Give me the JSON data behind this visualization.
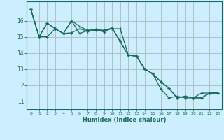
{
  "title": "",
  "xlabel": "Humidex (Indice chaleur)",
  "background_color": "#cceeff",
  "grid_color": "#aabbbb",
  "line_color": "#1a6b5a",
  "xlim": [
    -0.5,
    23.5
  ],
  "ylim": [
    10.5,
    17.2
  ],
  "yticks": [
    11,
    12,
    13,
    14,
    15,
    16
  ],
  "xticks": [
    0,
    1,
    2,
    3,
    4,
    5,
    6,
    7,
    8,
    9,
    10,
    11,
    12,
    13,
    14,
    15,
    16,
    17,
    18,
    19,
    20,
    21,
    22,
    23
  ],
  "series": [
    [
      16.7,
      15.0,
      15.0,
      15.5,
      15.2,
      15.25,
      15.5,
      15.35,
      15.4,
      15.4,
      15.5,
      15.5,
      13.85,
      13.8,
      13.0,
      12.7,
      12.2,
      11.8,
      11.2,
      11.3,
      11.2,
      11.2,
      11.5,
      11.5
    ],
    [
      16.7,
      15.0,
      15.85,
      15.5,
      15.2,
      16.0,
      15.65,
      15.4,
      15.45,
      15.4,
      15.55,
      14.7,
      13.85,
      13.8,
      13.0,
      12.7,
      12.2,
      11.8,
      11.2,
      11.3,
      11.2,
      11.2,
      11.5,
      11.5
    ],
    [
      16.7,
      15.0,
      15.85,
      15.5,
      15.2,
      16.0,
      15.2,
      15.4,
      15.45,
      15.3,
      15.55,
      14.7,
      13.85,
      13.8,
      13.0,
      12.7,
      11.75,
      11.2,
      11.3,
      11.2,
      11.2,
      11.5,
      11.5,
      11.5
    ]
  ]
}
